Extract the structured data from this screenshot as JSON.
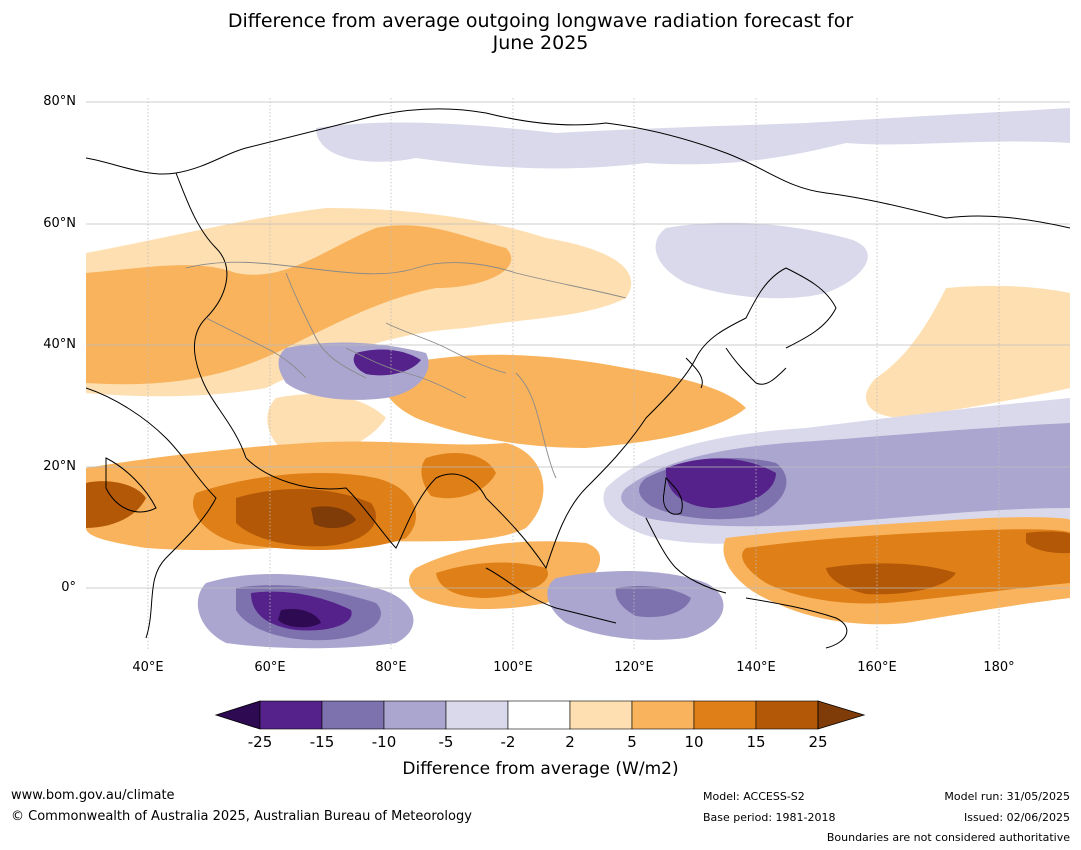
{
  "title_line1": "Difference from average outgoing longwave radiation forecast for",
  "title_line2": "June 2025",
  "lat_labels": [
    "80°N",
    "60°N",
    "40°N",
    "20°N",
    "0°"
  ],
  "lon_labels": [
    "40°E",
    "60°E",
    "80°E",
    "100°E",
    "120°E",
    "140°E",
    "160°E",
    "180°"
  ],
  "colorbar": {
    "ticks": [
      "-25",
      "-15",
      "-10",
      "-5",
      "-2",
      "2",
      "5",
      "10",
      "15",
      "25"
    ],
    "colors": [
      "#2d0a52",
      "#54228a",
      "#7e72ae",
      "#aba6cf",
      "#d9d9eb",
      "#ffffff",
      "#fedfb1",
      "#f9b35c",
      "#df7f17",
      "#b35807",
      "#7f3b08"
    ],
    "label": "Difference from average (W/m2)"
  },
  "footer": {
    "url": "www.bom.gov.au/climate",
    "copyright": "© Commonwealth of Australia 2025, Australian Bureau of Meteorology",
    "model": "Model: ACCESS-S2",
    "base_period": "Base period: 1981-2018",
    "model_run": "Model run: 31/05/2025",
    "issued": "Issued: 02/06/2025",
    "disclaimer": "Boundaries are not considered authoritative"
  }
}
